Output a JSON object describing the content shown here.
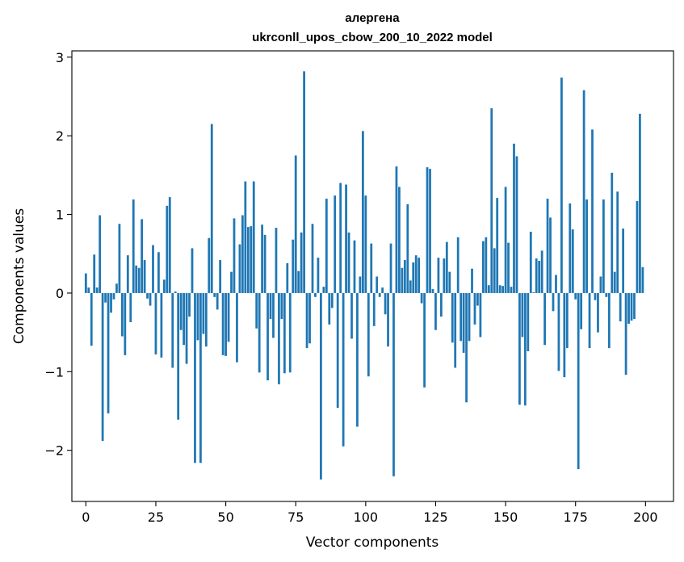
{
  "chart_data": {
    "type": "bar",
    "title": "алергена",
    "subtitle": "ukrconll_upos_cbow_200_10_2022 model",
    "xlabel": "Vector components",
    "ylabel": "Components values",
    "xlim": [
      -5,
      210
    ],
    "ylim": [
      -2.65,
      3.08
    ],
    "xticks": [
      0,
      25,
      50,
      75,
      100,
      125,
      150,
      175,
      200
    ],
    "yticks": [
      -2,
      -1,
      0,
      1,
      2,
      3
    ],
    "ytick_labels": [
      "−2",
      "−1",
      "0",
      "1",
      "2",
      "3"
    ],
    "color": "#1f77b4",
    "x": [
      0,
      1,
      2,
      3,
      4,
      5,
      6,
      7,
      8,
      9,
      10,
      11,
      12,
      13,
      14,
      15,
      16,
      17,
      18,
      19,
      20,
      21,
      22,
      23,
      24,
      25,
      26,
      27,
      28,
      29,
      30,
      31,
      32,
      33,
      34,
      35,
      36,
      37,
      38,
      39,
      40,
      41,
      42,
      43,
      44,
      45,
      46,
      47,
      48,
      49,
      50,
      51,
      52,
      53,
      54,
      55,
      56,
      57,
      58,
      59,
      60,
      61,
      62,
      63,
      64,
      65,
      66,
      67,
      68,
      69,
      70,
      71,
      72,
      73,
      74,
      75,
      76,
      77,
      78,
      79,
      80,
      81,
      82,
      83,
      84,
      85,
      86,
      87,
      88,
      89,
      90,
      91,
      92,
      93,
      94,
      95,
      96,
      97,
      98,
      99,
      100,
      101,
      102,
      103,
      104,
      105,
      106,
      107,
      108,
      109,
      110,
      111,
      112,
      113,
      114,
      115,
      116,
      117,
      118,
      119,
      120,
      121,
      122,
      123,
      124,
      125,
      126,
      127,
      128,
      129,
      130,
      131,
      132,
      133,
      134,
      135,
      136,
      137,
      138,
      139,
      140,
      141,
      142,
      143,
      144,
      145,
      146,
      147,
      148,
      149,
      150,
      151,
      152,
      153,
      154,
      155,
      156,
      157,
      158,
      159,
      160,
      161,
      162,
      163,
      164,
      165,
      166,
      167,
      168,
      169,
      170,
      171,
      172,
      173,
      174,
      175,
      176,
      177,
      178,
      179,
      180,
      181,
      182,
      183,
      184,
      185,
      186,
      187,
      188,
      189,
      190,
      191,
      192,
      193,
      194,
      195,
      196,
      197,
      198,
      199
    ],
    "values": [
      0.25,
      0.07,
      -0.67,
      0.49,
      0.07,
      0.99,
      -1.88,
      -0.12,
      -1.53,
      -0.25,
      -0.08,
      0.12,
      0.88,
      -0.55,
      -0.79,
      0.48,
      -0.37,
      1.19,
      0.35,
      0.32,
      0.94,
      0.42,
      -0.07,
      -0.16,
      0.61,
      -0.78,
      0.52,
      -0.82,
      0.17,
      1.11,
      1.22,
      -0.95,
      0.02,
      -1.61,
      -0.47,
      -0.66,
      -0.9,
      -0.3,
      0.57,
      -2.16,
      -0.6,
      -2.16,
      -0.52,
      -0.68,
      0.7,
      2.15,
      -0.05,
      -0.21,
      0.42,
      -0.79,
      -0.8,
      -0.62,
      0.27,
      0.95,
      -0.88,
      0.62,
      0.99,
      1.42,
      0.84,
      0.85,
      1.42,
      -0.45,
      -1.01,
      0.87,
      0.74,
      -1.11,
      -0.33,
      -0.57,
      0.83,
      -1.16,
      -0.33,
      -1.02,
      0.38,
      -1.01,
      0.68,
      1.75,
      0.28,
      0.77,
      2.82,
      -0.7,
      -0.64,
      0.88,
      -0.05,
      0.45,
      -2.37,
      0.08,
      1.2,
      -0.4,
      -0.19,
      1.24,
      -1.46,
      1.4,
      -1.95,
      1.38,
      0.77,
      -0.58,
      0.67,
      -1.7,
      0.21,
      2.06,
      1.24,
      -1.06,
      0.63,
      -0.42,
      0.21,
      -0.05,
      0.07,
      -0.27,
      -0.68,
      0.63,
      -2.33,
      1.61,
      1.35,
      0.32,
      0.42,
      1.13,
      0.16,
      0.39,
      0.48,
      0.45,
      -0.13,
      -1.2,
      1.6,
      1.58,
      0.05,
      -0.47,
      0.45,
      -0.3,
      0.44,
      0.65,
      0.27,
      -0.63,
      -0.95,
      0.71,
      -0.61,
      -0.76,
      -1.39,
      -0.61,
      0.31,
      -0.4,
      -0.16,
      -0.56,
      0.66,
      0.71,
      0.1,
      2.35,
      0.57,
      1.21,
      0.1,
      0.09,
      1.35,
      0.64,
      0.08,
      1.9,
      1.74,
      -1.42,
      -0.56,
      -1.43,
      -0.74,
      0.78,
      0.01,
      0.44,
      0.41,
      0.54,
      -0.66,
      1.2,
      0.96,
      -0.23,
      0.23,
      -0.99,
      2.74,
      -1.07,
      -0.7,
      1.14,
      0.81,
      -0.08,
      -2.24,
      -0.46,
      2.58,
      1.19,
      -0.7,
      2.08,
      -0.09,
      -0.5,
      0.21,
      1.19,
      -0.05,
      -0.7,
      1.53,
      0.27,
      1.29,
      -0.36,
      0.82,
      -1.04,
      -0.39,
      -0.35,
      -0.33,
      1.17,
      2.28,
      0.33
    ]
  }
}
